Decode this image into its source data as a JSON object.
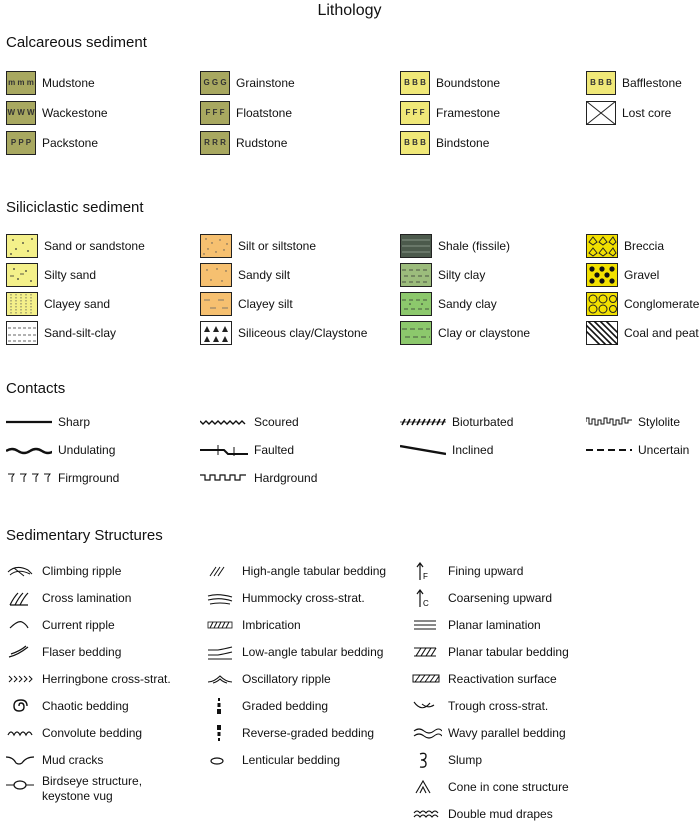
{
  "title": "Lithology",
  "sections": {
    "calcareous": "Calcareous sediment",
    "siliciclastic": "Siliciclastic sediment",
    "contacts": "Contacts",
    "structures": "Sedimentary Structures"
  },
  "calcareous": [
    "Mudstone",
    "Wackestone",
    "Packstone",
    "Grainstone",
    "Floatstone",
    "Rudstone",
    "Boundstone",
    "Framestone",
    "Bindstone",
    "Bafflestone",
    "Lost core"
  ],
  "siliciclastic": [
    "Sand or sandstone",
    "Silty sand",
    "Clayey sand",
    "Sand-silt-clay",
    "Silt or siltstone",
    "Sandy silt",
    "Clayey silt",
    "Siliceous clay/Claystone",
    "Shale (fissile)",
    "Silty clay",
    "Sandy clay",
    "Clay or claystone",
    "Breccia",
    "Gravel",
    "Conglomerate",
    "Coal and peat"
  ],
  "contacts": [
    "Sharp",
    "Undulating",
    "Firmground",
    "Scoured",
    "Faulted",
    "Hardground",
    "Bioturbated",
    "Inclined",
    "Stylolite",
    "Uncertain"
  ],
  "structures": {
    "col1": [
      "Climbing ripple",
      "Cross lamination",
      "Current ripple",
      "Flaser bedding",
      "Herringbone cross-strat.",
      "Chaotic bedding",
      "Convolute bedding",
      "Mud cracks",
      "Birdseye structure,",
      "keystone vug"
    ],
    "col2": [
      "High-angle tabular bedding",
      "Hummocky cross-strat.",
      "Imbrication",
      "Low-angle tabular bedding",
      "Oscillatory ripple",
      "Graded bedding",
      "Reverse-graded bedding",
      "Lenticular bedding"
    ],
    "col3": [
      "Fining upward",
      "Coarsening upward",
      "Planar lamination",
      "Planar tabular bedding",
      "Reactivation surface",
      "Trough cross-strat.",
      "Wavy parallel bedding",
      "Slump",
      "Cone in cone structure",
      "Double mud drapes"
    ]
  },
  "swatch_text": {
    "mudstone": "m m m",
    "wackestone": "W W W",
    "packstone": "P P P",
    "grainstone": "G G G",
    "floatstone": "F F F",
    "rudstone": "R R R",
    "boundstone": "B B B",
    "framestone": "F F F",
    "bindstone": "B B B",
    "bafflestone": "B B B",
    "fining": "F",
    "coarsening": "C"
  },
  "colors": {
    "calc_olive": "#a8a860",
    "calc_yellow": "#f0e878",
    "sand": "#f4f08a",
    "silt": "#f6c070",
    "shale": "#4c5a4c",
    "silty_clay": "#9cbc7c",
    "clay": "#8cc86c",
    "gravel": "#f2e000"
  }
}
